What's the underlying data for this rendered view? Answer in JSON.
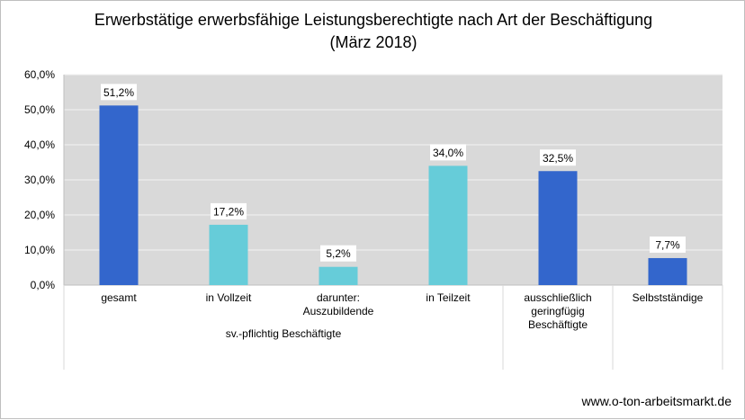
{
  "title_line1": "Erwerbstätige erwerbsfähige Leistungsberechtigte nach Art der Beschäftigung",
  "title_line2": "(März 2018)",
  "footer": "www.o-ton-arbeitsmarkt.de",
  "colors": {
    "plot_bg": "#d9d9d9",
    "gridline": "#f2f2f2",
    "dark_blue": "#3366cc",
    "light_blue": "#66ccd9",
    "label_bg": "#ffffff"
  },
  "chart_data": {
    "type": "bar",
    "title": "Erwerbstätige erwerbsfähige Leistungsberechtigte nach Art der Beschäftigung (März 2018)",
    "categories": [
      "gesamt",
      "in Vollzeit",
      "darunter: Auszubildende",
      "in Teilzeit",
      "ausschließlich geringfügig Beschäftigte",
      "Selbstständige"
    ],
    "category_lines": [
      [
        "gesamt"
      ],
      [
        "in Vollzeit"
      ],
      [
        "darunter:",
        "Auszubildende"
      ],
      [
        "in Teilzeit"
      ],
      [
        "ausschließlich",
        "geringfügig",
        "Beschäftigte"
      ],
      [
        "Selbstständige"
      ]
    ],
    "values": [
      51.2,
      17.2,
      5.2,
      34.0,
      32.5,
      7.7
    ],
    "value_labels": [
      "51,2%",
      "17,2%",
      "5,2%",
      "34,0%",
      "32,5%",
      "7,7%"
    ],
    "bar_colors": [
      "#3366cc",
      "#66ccd9",
      "#66ccd9",
      "#66ccd9",
      "#3366cc",
      "#3366cc"
    ],
    "groups": [
      {
        "label": "sv.-pflichtig Beschäftigte",
        "start": 0,
        "end": 3
      },
      {
        "label": "",
        "start": 4,
        "end": 4
      },
      {
        "label": "",
        "start": 5,
        "end": 5
      }
    ],
    "ylim": [
      0,
      60
    ],
    "yticks": [
      0,
      10,
      20,
      30,
      40,
      50,
      60
    ],
    "ytick_labels": [
      "0,0%",
      "10,0%",
      "20,0%",
      "30,0%",
      "40,0%",
      "50,0%",
      "60,0%"
    ],
    "grid": true,
    "xlabel": "",
    "ylabel": ""
  }
}
